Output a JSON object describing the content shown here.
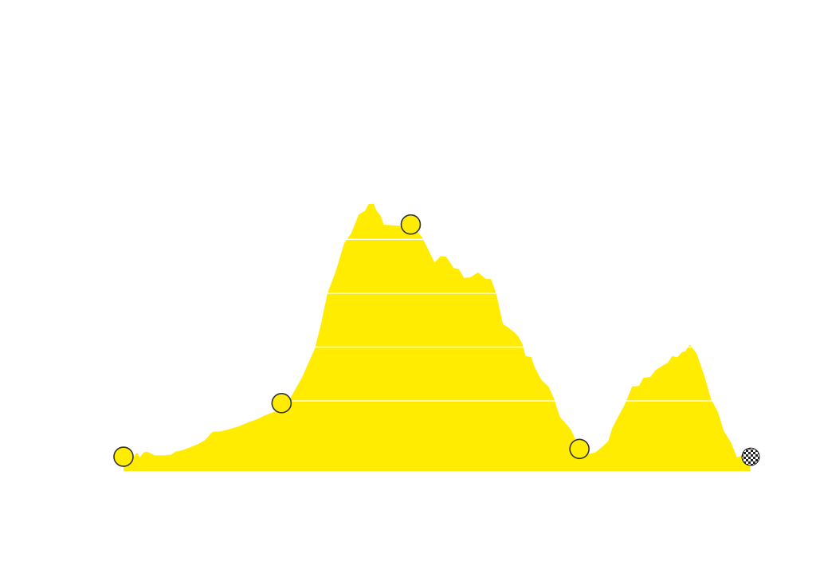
{
  "colors": {
    "background": "#ffffff",
    "profile_fill": "#ffec00",
    "gridline": "#ffffff",
    "marker_fill": "#ffec00",
    "marker_stroke": "#333333",
    "finish_dark": "#222222",
    "finish_light": "#ffffff"
  },
  "chart_data": {
    "type": "area",
    "title": "",
    "xlabel": "",
    "ylabel": "",
    "xlim": [
      0,
      100
    ],
    "ylim": [
      0,
      100
    ],
    "grid": true,
    "gridlines_y": [
      26,
      46,
      66,
      86
    ],
    "profile": [
      [
        0.0,
        5.8
      ],
      [
        0.5,
        4.6
      ],
      [
        1.0,
        4.2
      ],
      [
        1.5,
        4.6
      ],
      [
        2.0,
        6.6
      ],
      [
        2.3,
        6.5
      ],
      [
        2.6,
        5.0
      ],
      [
        3.2,
        6.9
      ],
      [
        3.7,
        7.2
      ],
      [
        4.3,
        6.6
      ],
      [
        5.0,
        5.8
      ],
      [
        6.5,
        5.8
      ],
      [
        7.6,
        6.1
      ],
      [
        8.3,
        7.2
      ],
      [
        9.5,
        7.8
      ],
      [
        10.5,
        8.7
      ],
      [
        12.0,
        10.1
      ],
      [
        13.0,
        11.5
      ],
      [
        14.2,
        14.6
      ],
      [
        15.5,
        14.7
      ],
      [
        17.0,
        15.6
      ],
      [
        18.5,
        16.7
      ],
      [
        19.8,
        18.0
      ],
      [
        21.2,
        19.1
      ],
      [
        22.5,
        20.6
      ],
      [
        24.5,
        22.4
      ],
      [
        26.0,
        24.6
      ],
      [
        28.5,
        34.9
      ],
      [
        30.5,
        45.4
      ],
      [
        31.5,
        54.6
      ],
      [
        32.5,
        65.9
      ],
      [
        33.8,
        73.9
      ],
      [
        35.2,
        84.6
      ],
      [
        36.3,
        88.2
      ],
      [
        36.9,
        91.7
      ],
      [
        37.5,
        95.2
      ],
      [
        38.5,
        96.6
      ],
      [
        39.1,
        99.1
      ],
      [
        39.9,
        99.2
      ],
      [
        40.3,
        96.8
      ],
      [
        41.0,
        94.7
      ],
      [
        41.5,
        91.4
      ],
      [
        43.8,
        91.1
      ],
      [
        45.3,
        90.6
      ],
      [
        46.6,
        89.5
      ],
      [
        47.6,
        86.8
      ],
      [
        48.5,
        82.6
      ],
      [
        49.6,
        77.4
      ],
      [
        50.6,
        79.8
      ],
      [
        51.4,
        79.6
      ],
      [
        52.1,
        77.4
      ],
      [
        52.6,
        75.4
      ],
      [
        53.5,
        74.9
      ],
      [
        54.3,
        71.7
      ],
      [
        55.3,
        71.9
      ],
      [
        56.5,
        73.7
      ],
      [
        57.8,
        71.3
      ],
      [
        58.6,
        71.2
      ],
      [
        59.4,
        66.1
      ],
      [
        60.5,
        54.6
      ],
      [
        61.4,
        53.2
      ],
      [
        62.4,
        51.3
      ],
      [
        63.0,
        49.8
      ],
      [
        63.6,
        47.2
      ],
      [
        64.1,
        42.7
      ],
      [
        65.0,
        42.3
      ],
      [
        65.5,
        38.9
      ],
      [
        66.6,
        33.9
      ],
      [
        67.8,
        31.2
      ],
      [
        68.6,
        27.1
      ],
      [
        69.6,
        20.0
      ],
      [
        70.8,
        16.9
      ],
      [
        71.4,
        15.1
      ],
      [
        72.2,
        11.0
      ],
      [
        73.4,
        7.1
      ],
      [
        74.3,
        6.4
      ],
      [
        75.2,
        6.9
      ],
      [
        76.1,
        8.5
      ],
      [
        77.3,
        11.1
      ],
      [
        77.9,
        15.8
      ],
      [
        78.9,
        20.3
      ],
      [
        79.8,
        24.1
      ],
      [
        80.5,
        27.9
      ],
      [
        81.1,
        31.4
      ],
      [
        82.2,
        31.6
      ],
      [
        82.9,
        34.6
      ],
      [
        84.0,
        34.9
      ],
      [
        84.8,
        37.4
      ],
      [
        85.8,
        38.9
      ],
      [
        86.8,
        40.2
      ],
      [
        87.5,
        42.7
      ],
      [
        88.3,
        42.2
      ],
      [
        89.0,
        44.0
      ],
      [
        89.6,
        44.5
      ],
      [
        89.9,
        45.7
      ],
      [
        90.3,
        46.9
      ],
      [
        91.4,
        43.6
      ],
      [
        92.6,
        35.4
      ],
      [
        93.7,
        26.6
      ],
      [
        94.8,
        21.8
      ],
      [
        95.7,
        14.9
      ],
      [
        96.9,
        10.4
      ],
      [
        97.8,
        5.1
      ],
      [
        98.5,
        5.6
      ],
      [
        99.3,
        6.0
      ],
      [
        99.7,
        6.5
      ],
      [
        100.0,
        0.0
      ]
    ],
    "markers": [
      {
        "id": "km-0",
        "type": "circle",
        "x": 0,
        "y": 5.3
      },
      {
        "id": "climb-1-base",
        "type": "circle",
        "x": 25.2,
        "y": 25.2
      },
      {
        "id": "summit",
        "type": "circle",
        "x": 45.8,
        "y": 91.5
      },
      {
        "id": "valley",
        "type": "circle",
        "x": 72.7,
        "y": 8.2
      },
      {
        "id": "finish",
        "type": "finish-flag",
        "x": 100,
        "y": 5.3
      }
    ]
  },
  "icons": {
    "marker": "circle-marker-icon",
    "finish": "checkered-flag-icon"
  }
}
